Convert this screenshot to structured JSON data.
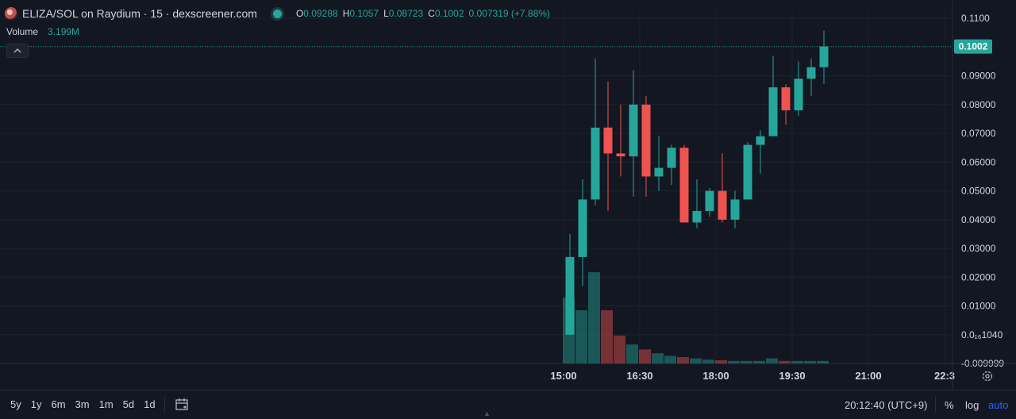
{
  "header": {
    "title": "ELIZA/SOL on Raydium · 15 · dexscreener.com",
    "ohlc": [
      {
        "k": "O",
        "v": "0.09288"
      },
      {
        "k": "H",
        "v": "0.1057"
      },
      {
        "k": "L",
        "v": "0.08723"
      },
      {
        "k": "C",
        "v": "0.1002"
      }
    ],
    "change": "0.007319 (+7.88%)",
    "volume_label": "Volume",
    "volume_value": "3.199M"
  },
  "colors": {
    "background": "#131722",
    "up": "#26a69a",
    "down": "#ef5350",
    "grid": "#1e222d",
    "axis_text": "#d1d4dc",
    "accent": "#2962ff"
  },
  "chart_data": {
    "type": "candlestick",
    "title": "ELIZA/SOL on Raydium · 15 · dexscreener.com",
    "y_ticks": [
      "0.1100",
      "0.1000",
      "0.09000",
      "0.08000",
      "0.07000",
      "0.06000",
      "0.05000",
      "0.04000",
      "0.03000",
      "0.02000",
      "0.01000",
      "0.0₁₆1040",
      "-0.009999"
    ],
    "y_tick_values": [
      0.11,
      0.1,
      0.09,
      0.08,
      0.07,
      0.06,
      0.05,
      0.04,
      0.03,
      0.02,
      0.01,
      0.0,
      -0.01
    ],
    "ylim": [
      -0.01,
      0.1125
    ],
    "x_ticks": [
      "15:00",
      "16:30",
      "18:00",
      "19:30",
      "21:00",
      "22:3"
    ],
    "x_tick_slots": [
      -0.5,
      5.5,
      11.5,
      17.5,
      23.5,
      29.5
    ],
    "last_price_label": "0.1002",
    "last_price": 0.1002,
    "candles": [
      {
        "o": 0.0,
        "h": 0.035,
        "l": 0.0,
        "c": 0.027
      },
      {
        "o": 0.027,
        "h": 0.054,
        "l": 0.017,
        "c": 0.047
      },
      {
        "o": 0.047,
        "h": 0.096,
        "l": 0.045,
        "c": 0.072
      },
      {
        "o": 0.072,
        "h": 0.088,
        "l": 0.043,
        "c": 0.063
      },
      {
        "o": 0.063,
        "h": 0.08,
        "l": 0.055,
        "c": 0.062
      },
      {
        "o": 0.062,
        "h": 0.092,
        "l": 0.048,
        "c": 0.08
      },
      {
        "o": 0.08,
        "h": 0.083,
        "l": 0.048,
        "c": 0.055
      },
      {
        "o": 0.055,
        "h": 0.069,
        "l": 0.05,
        "c": 0.058
      },
      {
        "o": 0.058,
        "h": 0.066,
        "l": 0.052,
        "c": 0.065
      },
      {
        "o": 0.065,
        "h": 0.066,
        "l": 0.039,
        "c": 0.039
      },
      {
        "o": 0.039,
        "h": 0.054,
        "l": 0.037,
        "c": 0.043
      },
      {
        "o": 0.043,
        "h": 0.051,
        "l": 0.041,
        "c": 0.05
      },
      {
        "o": 0.05,
        "h": 0.063,
        "l": 0.039,
        "c": 0.04
      },
      {
        "o": 0.04,
        "h": 0.05,
        "l": 0.037,
        "c": 0.047
      },
      {
        "o": 0.047,
        "h": 0.067,
        "l": 0.047,
        "c": 0.066
      },
      {
        "o": 0.066,
        "h": 0.071,
        "l": 0.056,
        "c": 0.069
      },
      {
        "o": 0.069,
        "h": 0.097,
        "l": 0.069,
        "c": 0.086
      },
      {
        "o": 0.086,
        "h": 0.087,
        "l": 0.073,
        "c": 0.078
      },
      {
        "o": 0.078,
        "h": 0.095,
        "l": 0.076,
        "c": 0.089
      },
      {
        "o": 0.089,
        "h": 0.096,
        "l": 0.083,
        "c": 0.093
      },
      {
        "o": 0.093,
        "h": 0.1057,
        "l": 0.0872,
        "c": 0.1002
      }
    ],
    "volume_ratio": [
      0.52,
      0.42,
      0.72,
      0.42,
      0.22,
      0.15,
      0.11,
      0.08,
      0.06,
      0.05,
      0.04,
      0.03,
      0.025,
      0.02,
      0.02,
      0.02,
      0.04,
      0.02,
      0.02,
      0.02,
      0.02
    ],
    "grid": true,
    "legend": "none"
  },
  "bottom": {
    "ranges": [
      "5y",
      "1y",
      "6m",
      "3m",
      "1m",
      "5d",
      "1d"
    ],
    "clock": "20:12:40 (UTC+9)",
    "percent": "%",
    "log": "log",
    "auto": "auto"
  }
}
